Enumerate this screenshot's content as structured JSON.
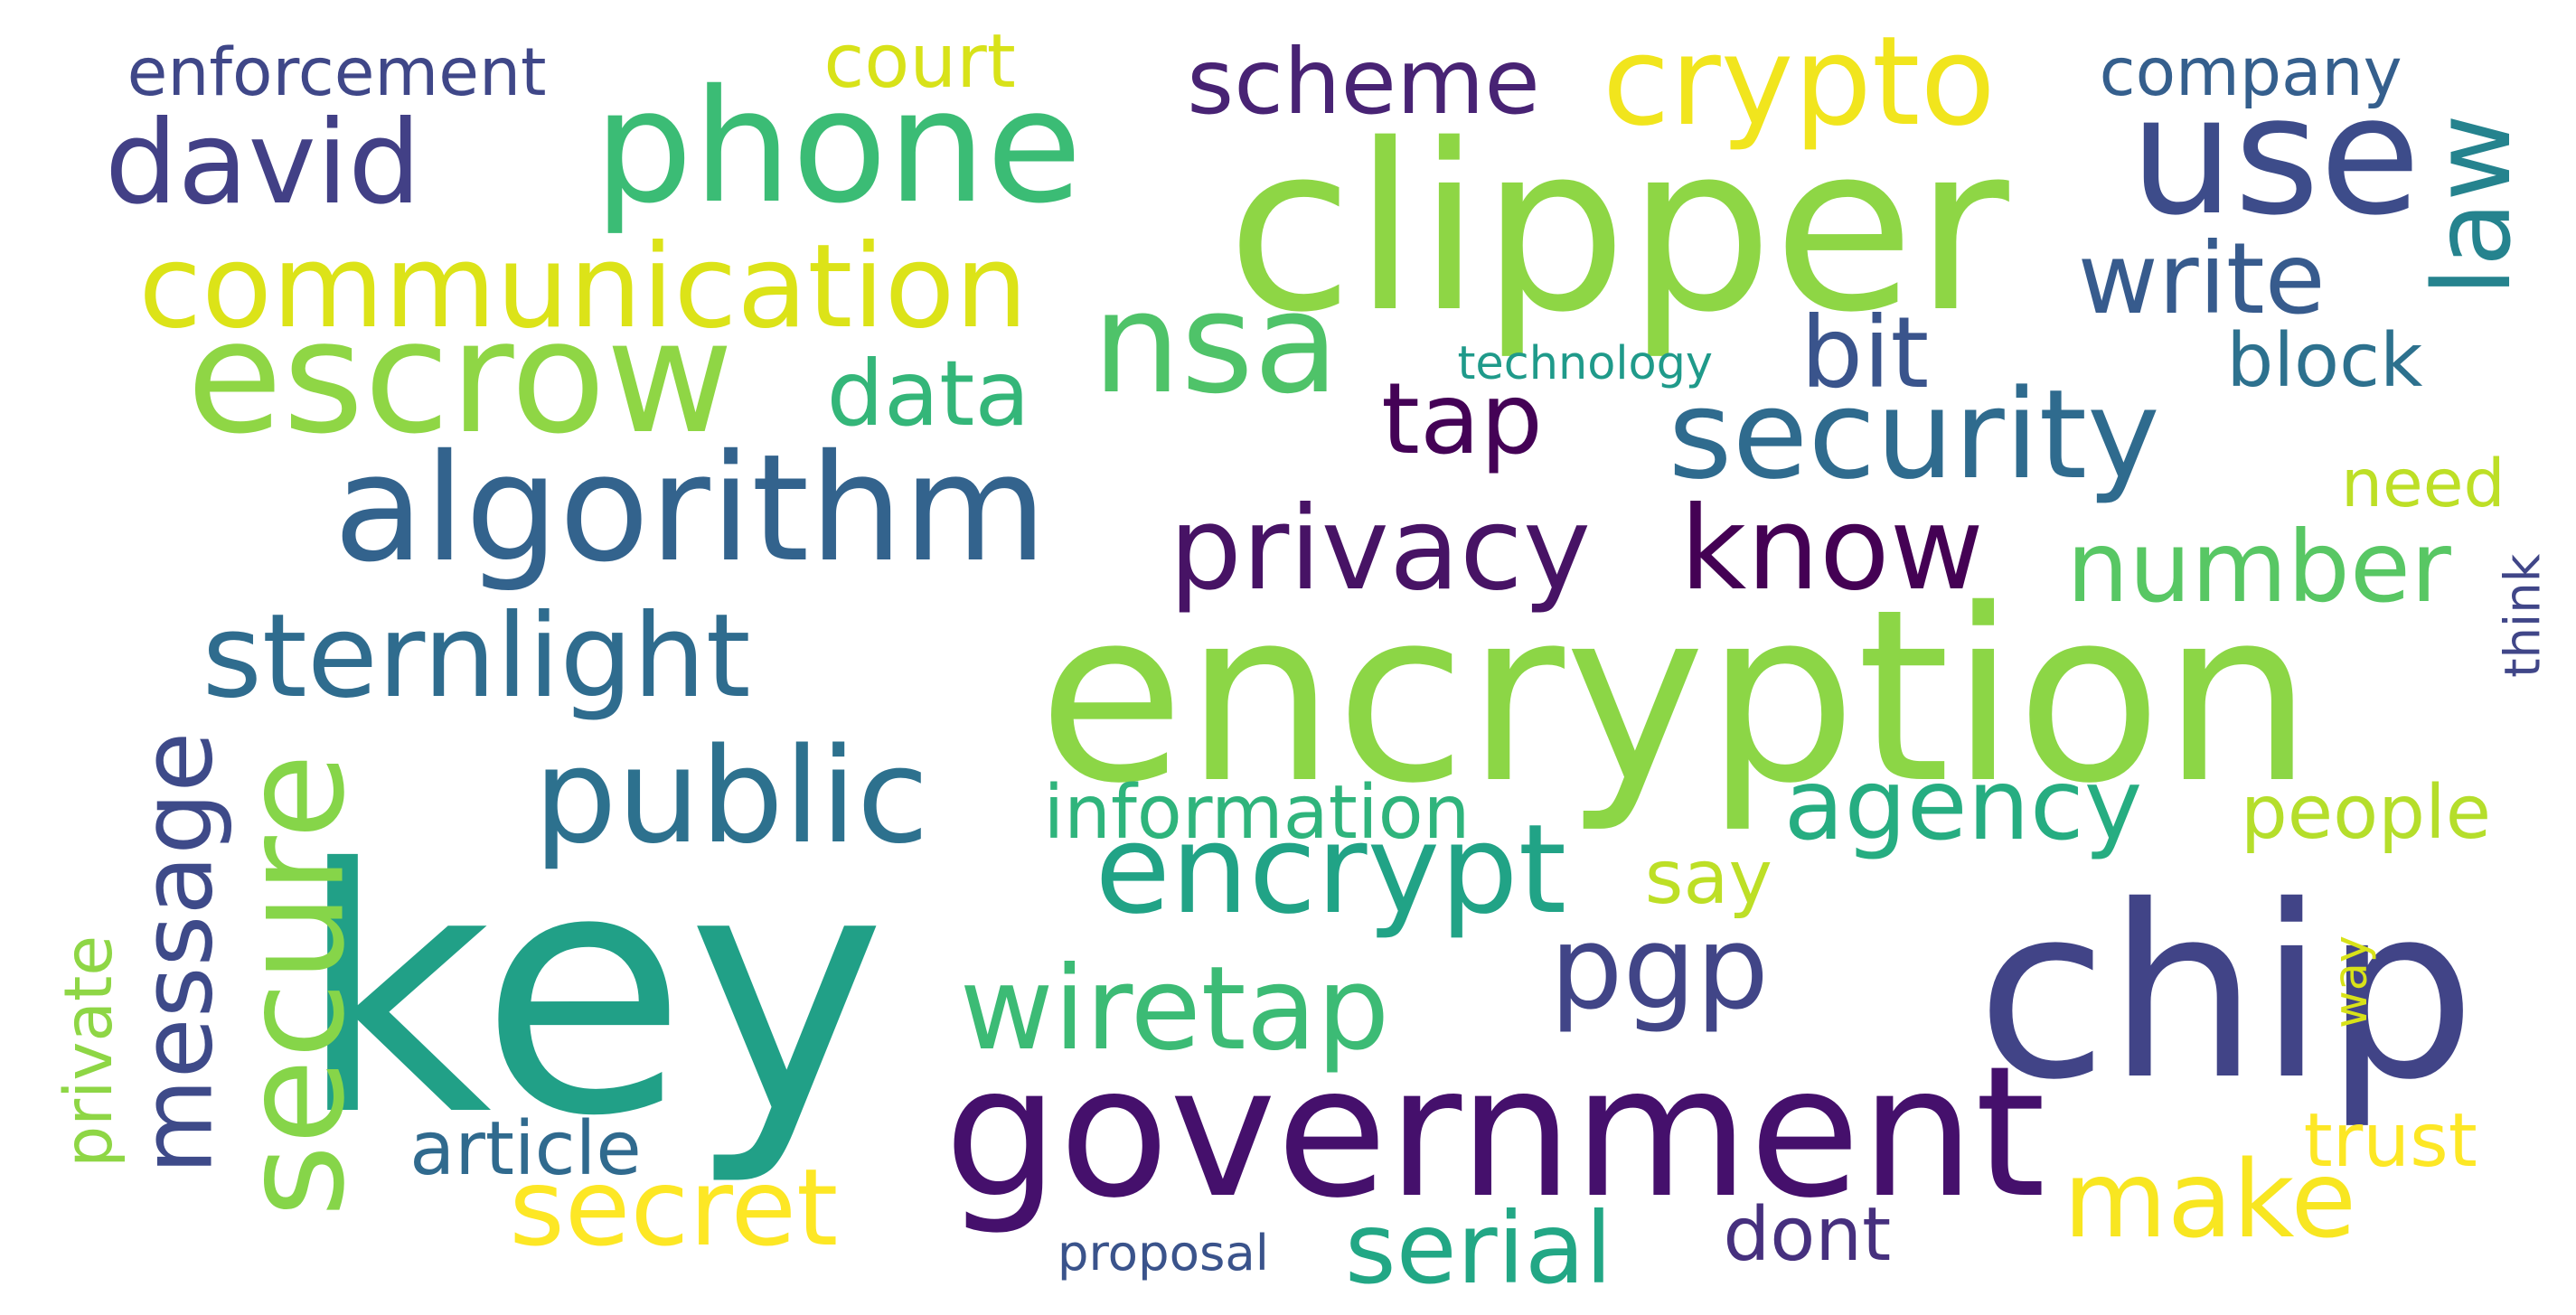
{
  "words": [
    {
      "text": "key",
      "color": "#21A087",
      "vertical": false
    },
    {
      "text": "encryption",
      "color": "#8CD646",
      "vertical": false
    },
    {
      "text": "clipper",
      "color": "#8ED645",
      "vertical": false
    },
    {
      "text": "chip",
      "color": "#414487",
      "vertical": false
    },
    {
      "text": "government",
      "color": "#45106C",
      "vertical": false
    },
    {
      "text": "escrow",
      "color": "#8FD645",
      "vertical": false
    },
    {
      "text": "phone",
      "color": "#3BBC75",
      "vertical": false
    },
    {
      "text": "use",
      "color": "#3D4C8A",
      "vertical": false
    },
    {
      "text": "algorithm",
      "color": "#33638D",
      "vertical": false
    },
    {
      "text": "secure",
      "color": "#86D549",
      "vertical": true
    },
    {
      "text": "public",
      "color": "#2D718E",
      "vertical": false
    },
    {
      "text": "crypto",
      "color": "#F1E51D",
      "vertical": false
    },
    {
      "text": "nsa",
      "color": "#4FC369",
      "vertical": false
    },
    {
      "text": "security",
      "color": "#2F6B8E",
      "vertical": false
    },
    {
      "text": "encrypt",
      "color": "#21A386",
      "vertical": false
    },
    {
      "text": "communication",
      "color": "#DCE318",
      "vertical": false
    },
    {
      "text": "sternlight",
      "color": "#2F6C8E",
      "vertical": false
    },
    {
      "text": "privacy",
      "color": "#471365",
      "vertical": false
    },
    {
      "text": "wiretap",
      "color": "#3CBB75",
      "vertical": false
    },
    {
      "text": "david",
      "color": "#424086",
      "vertical": false
    },
    {
      "text": "message",
      "color": "#3E4A89",
      "vertical": true
    },
    {
      "text": "secret",
      "color": "#FDE725",
      "vertical": false
    },
    {
      "text": "pgp",
      "color": "#414587",
      "vertical": false
    },
    {
      "text": "know",
      "color": "#440154",
      "vertical": false
    },
    {
      "text": "agency",
      "color": "#26AD81",
      "vertical": false
    },
    {
      "text": "number",
      "color": "#58C764",
      "vertical": false
    },
    {
      "text": "make",
      "color": "#F8E621",
      "vertical": false
    },
    {
      "text": "serial",
      "color": "#22A785",
      "vertical": false
    },
    {
      "text": "data",
      "color": "#34B679",
      "vertical": false
    },
    {
      "text": "tap",
      "color": "#440256",
      "vertical": false
    },
    {
      "text": "bit",
      "color": "#3A548C",
      "vertical": false
    },
    {
      "text": "write",
      "color": "#375B8D",
      "vertical": false
    },
    {
      "text": "scheme",
      "color": "#482374",
      "vertical": false
    },
    {
      "text": "law",
      "color": "#25838E",
      "vertical": true
    },
    {
      "text": "information",
      "color": "#2FB47C",
      "vertical": false
    },
    {
      "text": "article",
      "color": "#306A8E",
      "vertical": false
    },
    {
      "text": "private",
      "color": "#8ED645",
      "vertical": true
    },
    {
      "text": "trust",
      "color": "#FDE725",
      "vertical": false
    },
    {
      "text": "dont",
      "color": "#46307E",
      "vertical": false
    },
    {
      "text": "say",
      "color": "#BDDF26",
      "vertical": false
    },
    {
      "text": "people",
      "color": "#B5DE2B",
      "vertical": false
    },
    {
      "text": "block",
      "color": "#2D718E",
      "vertical": false
    },
    {
      "text": "company",
      "color": "#355F8D",
      "vertical": false
    },
    {
      "text": "court",
      "color": "#D8E219",
      "vertical": false
    },
    {
      "text": "enforcement",
      "color": "#3F4788",
      "vertical": false
    },
    {
      "text": "need",
      "color": "#BDDF26",
      "vertical": false
    },
    {
      "text": "think",
      "color": "#404688",
      "vertical": true
    },
    {
      "text": "way",
      "color": "#D8E219",
      "vertical": true
    },
    {
      "text": "technology",
      "color": "#1F9A8A",
      "vertical": false
    },
    {
      "text": "proposal",
      "color": "#3A538B",
      "vertical": false
    }
  ]
}
